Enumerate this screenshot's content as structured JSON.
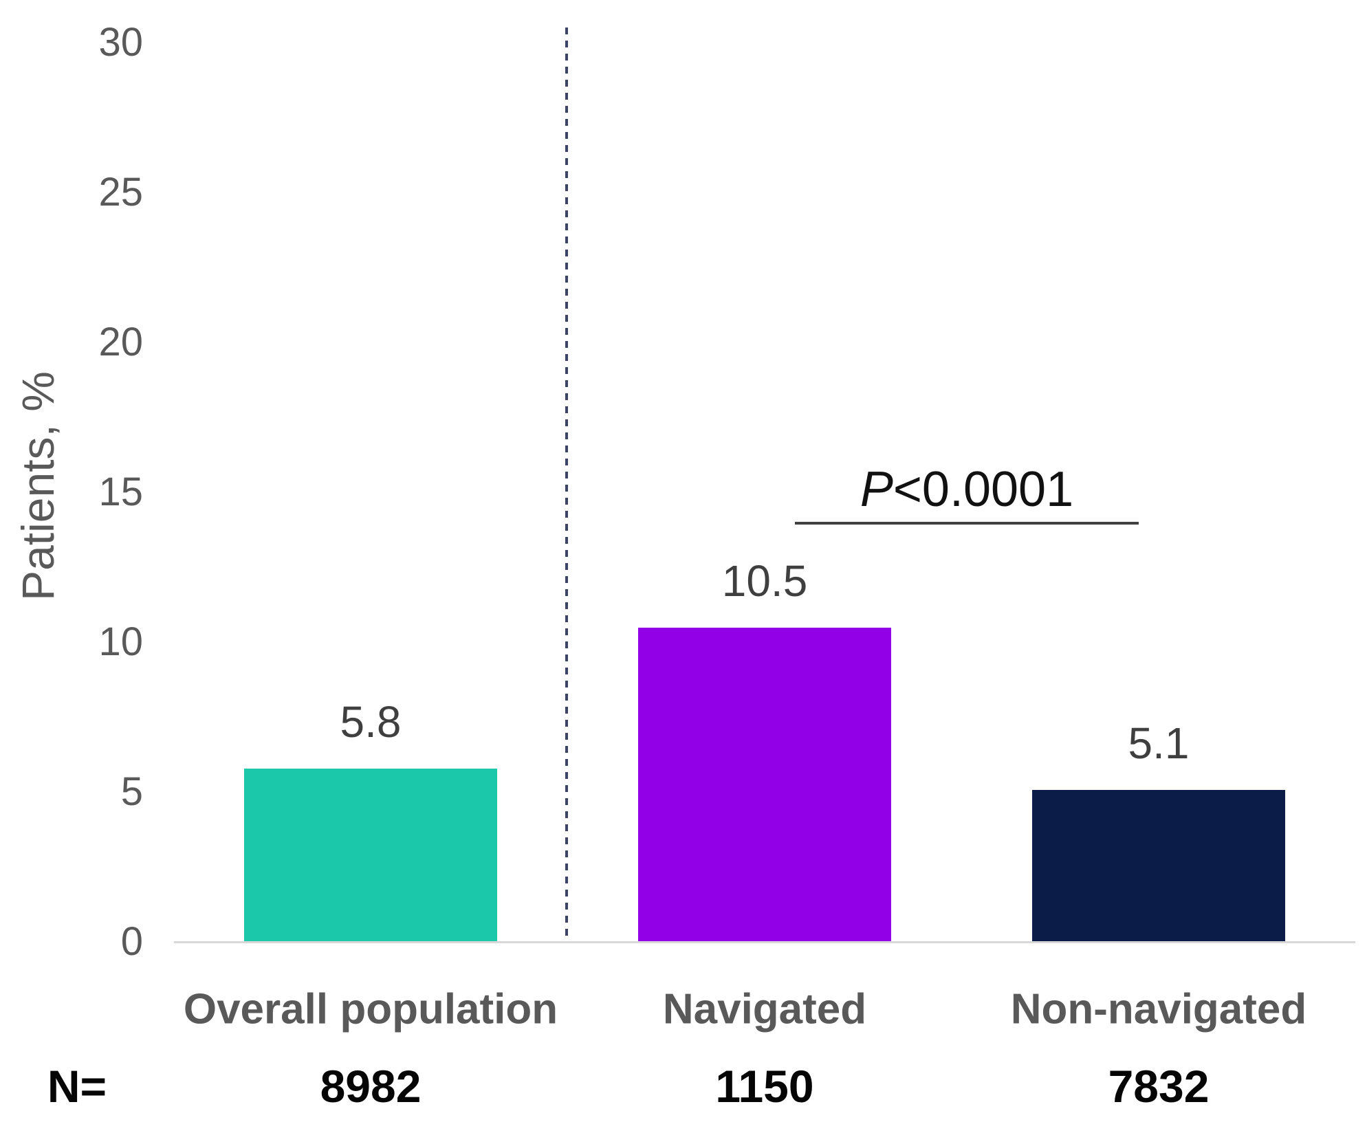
{
  "chart_data": {
    "type": "bar",
    "title": "",
    "xlabel": "",
    "ylabel": "Patients, %",
    "ylim": [
      0,
      30
    ],
    "yticks": [
      0,
      5,
      10,
      15,
      20,
      25,
      30
    ],
    "grid": false,
    "legend": false,
    "categories": [
      "Overall population",
      "Navigated",
      "Non-navigated"
    ],
    "values": [
      5.8,
      10.5,
      5.1
    ],
    "value_labels": [
      "5.8",
      "10.5",
      "5.1"
    ],
    "bar_colors": [
      "#1bc8a9",
      "#9100e6",
      "#0a1c47"
    ],
    "n_row": {
      "label": "N=",
      "values": [
        "8982",
        "1150",
        "7832"
      ]
    },
    "annotation": {
      "p_italic": "P",
      "p_rest": "<0.0001",
      "compared_groups": [
        "Navigated",
        "Non-navigated"
      ]
    },
    "separator_note": "dashed vertical line between Overall population and the Navigated / Non-navigated groups"
  },
  "colors": {
    "axis_line": "#d8d8d8",
    "tick_text": "#595959",
    "category_text": "#595959",
    "value_text": "#3f3f3f",
    "n_text": "#050505",
    "dashed_separator": "#3e4466",
    "significance_line": "#404040"
  }
}
